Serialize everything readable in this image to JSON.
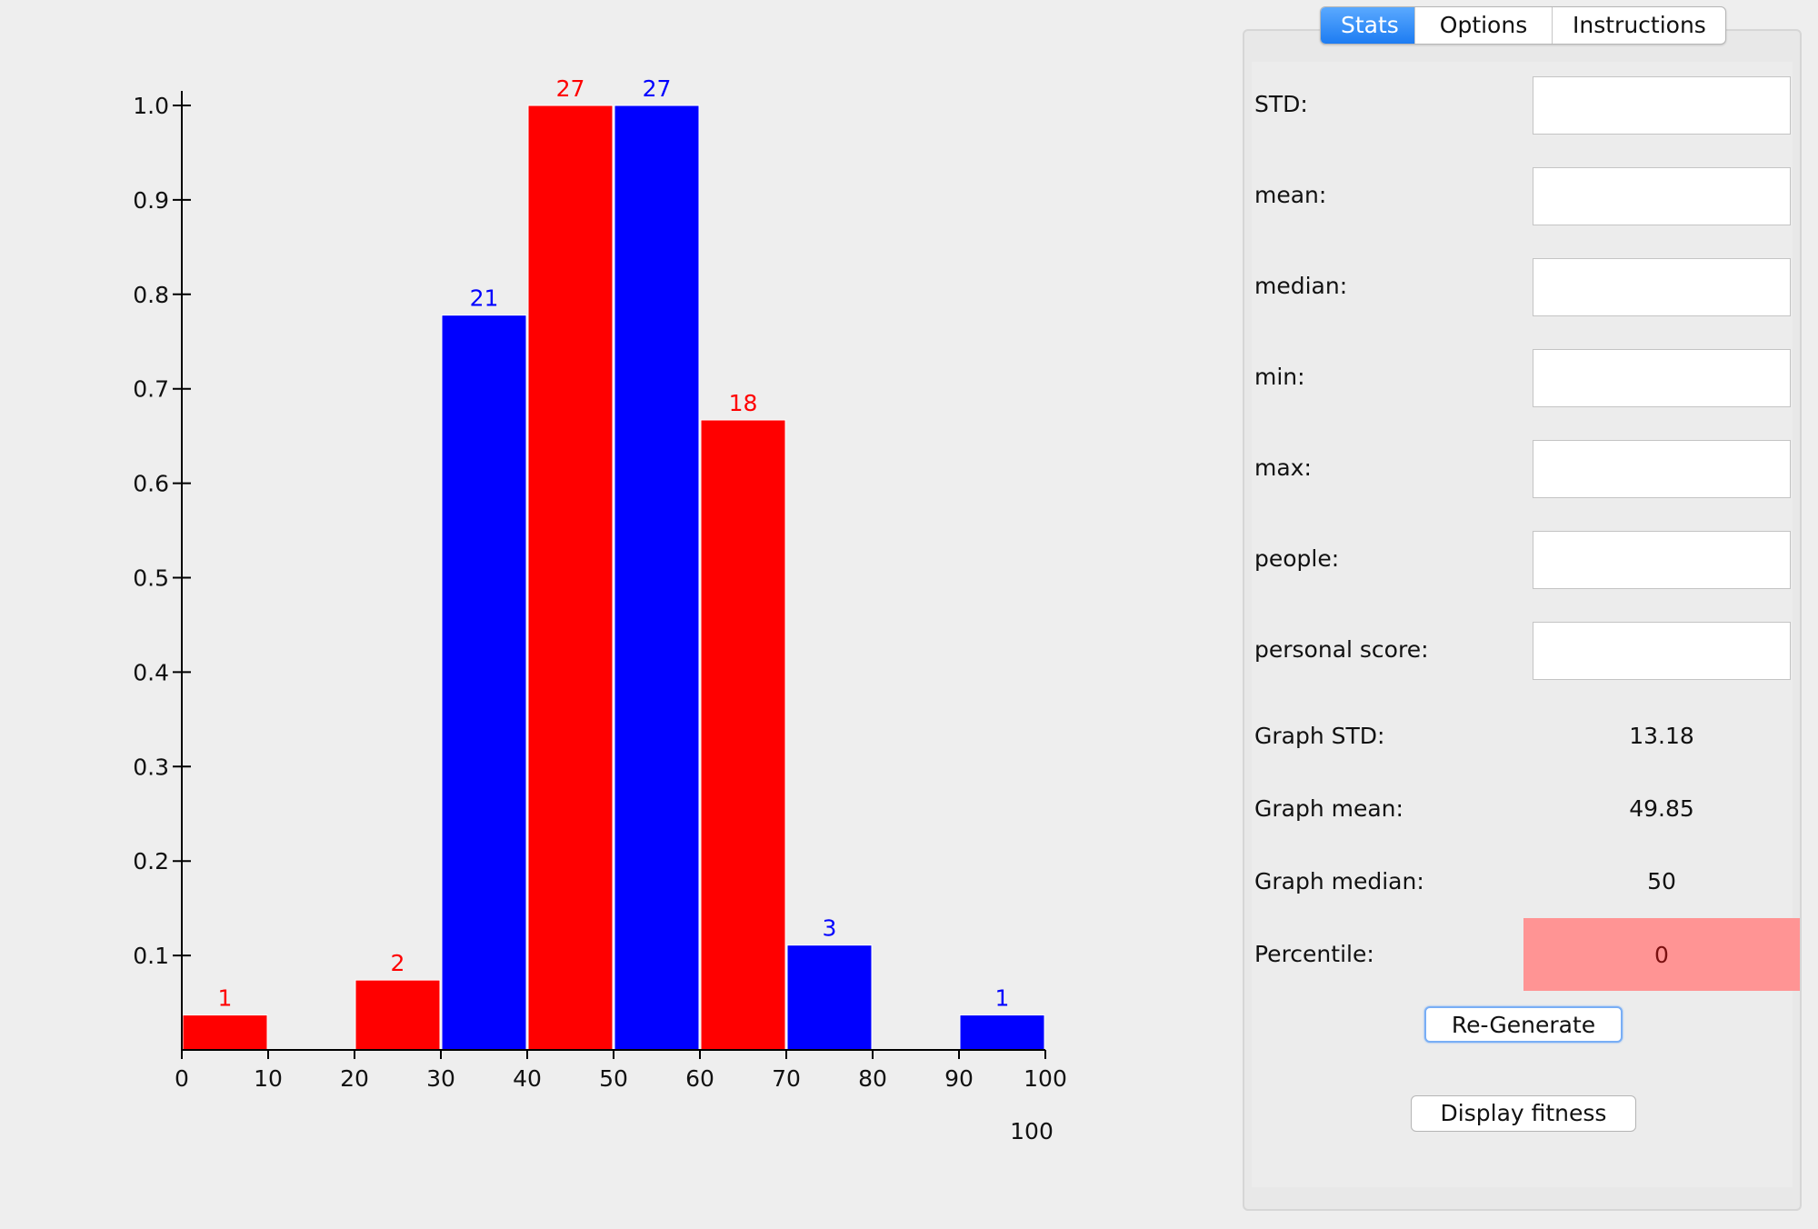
{
  "tabs": {
    "stats": "Stats",
    "options": "Options",
    "instructions": "Instructions",
    "active": "stats"
  },
  "fields": {
    "std_label": "STD:",
    "std_value": "",
    "mean_label": "mean:",
    "mean_value": "",
    "median_label": "median:",
    "median_value": "",
    "min_label": "min:",
    "min_value": "",
    "max_label": "max:",
    "max_value": "",
    "people_label": "people:",
    "people_value": "",
    "personal_score_label": "personal score:",
    "personal_score_value": ""
  },
  "stats": {
    "graph_std_label": "Graph STD:",
    "graph_std_value": "13.18",
    "graph_mean_label": "Graph mean:",
    "graph_mean_value": "49.85",
    "graph_median_label": "Graph median:",
    "graph_median_value": "50",
    "percentile_label": "Percentile:",
    "percentile_value": "0"
  },
  "buttons": {
    "regenerate": "Re-Generate",
    "display_fitness": "Display fitness"
  },
  "colors": {
    "red": "#ff0000",
    "blue": "#0000ff",
    "percentile_bg": "#ff9494",
    "percentile_text": "#7a1010",
    "tab_active": "#1d7cf2"
  },
  "chart_data": {
    "type": "bar",
    "x_ticks": [
      "0",
      "10",
      "20",
      "30",
      "40",
      "50",
      "60",
      "70",
      "80",
      "90",
      "100"
    ],
    "y_ticks": [
      "0.1",
      "0.2",
      "0.3",
      "0.4",
      "0.5",
      "0.6",
      "0.7",
      "0.8",
      "0.9",
      "1.0"
    ],
    "xlim": [
      0,
      100
    ],
    "ylim": [
      0,
      1.0
    ],
    "extra_label": "100",
    "bins": [
      {
        "x0": 0,
        "x1": 10,
        "value": 0.037,
        "label": "1",
        "color": "#ff0000"
      },
      {
        "x0": 20,
        "x1": 30,
        "value": 0.074,
        "label": "2",
        "color": "#ff0000"
      },
      {
        "x0": 30,
        "x1": 40,
        "value": 0.778,
        "label": "21",
        "color": "#0000ff"
      },
      {
        "x0": 40,
        "x1": 50,
        "value": 1.0,
        "label": "27",
        "color": "#ff0000"
      },
      {
        "x0": 50,
        "x1": 60,
        "value": 1.0,
        "label": "27",
        "color": "#0000ff"
      },
      {
        "x0": 60,
        "x1": 70,
        "value": 0.667,
        "label": "18",
        "color": "#ff0000"
      },
      {
        "x0": 70,
        "x1": 80,
        "value": 0.111,
        "label": "3",
        "color": "#0000ff"
      },
      {
        "x0": 90,
        "x1": 100,
        "value": 0.037,
        "label": "1",
        "color": "#0000ff"
      }
    ]
  }
}
